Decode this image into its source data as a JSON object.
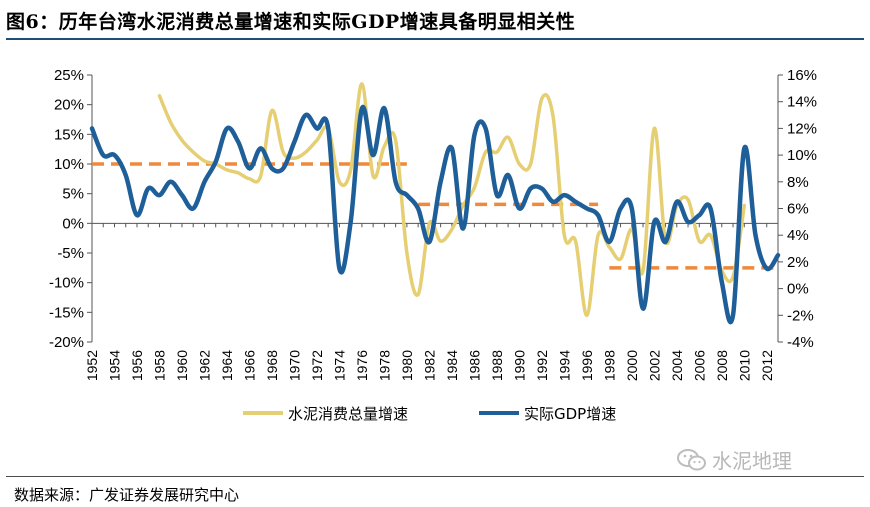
{
  "header": {
    "title": "图6：历年台湾水泥消费总量增速和实际GDP增速具备明显相关性"
  },
  "footer": {
    "source": "数据来源：广发证券发展研究中心",
    "watermark": "水泥地理",
    "watermark_icon": "wechat-icon"
  },
  "colors": {
    "cement": "#e6cf72",
    "gdp": "#1f5f99",
    "average": "#ef8a3c",
    "rule": "#1f4e79"
  },
  "chart_data": {
    "type": "line",
    "x_tick_labels": [
      "1952",
      "1954",
      "1956",
      "1958",
      "1960",
      "1962",
      "1964",
      "1966",
      "1968",
      "1970",
      "1972",
      "1974",
      "1976",
      "1978",
      "1980",
      "1982",
      "1984",
      "1986",
      "1988",
      "1990",
      "1992",
      "1994",
      "1996",
      "1998",
      "2000",
      "2002",
      "2004",
      "2006",
      "2008",
      "2010",
      "2012"
    ],
    "y_left": {
      "ticks": [
        "25%",
        "20%",
        "15%",
        "10%",
        "5%",
        "0%",
        "-5%",
        "-10%",
        "-15%",
        "-20%"
      ],
      "range": [
        -20,
        25
      ]
    },
    "y_right": {
      "ticks": [
        "16%",
        "14%",
        "12%",
        "10%",
        "8%",
        "6%",
        "4%",
        "2%",
        "0%",
        "-2%",
        "-4%"
      ],
      "range": [
        -4,
        16
      ]
    },
    "series": [
      {
        "name": "水泥消费总量增速",
        "axis": "left",
        "x": [
          1958,
          1959,
          1960,
          1961,
          1962,
          1963,
          1964,
          1965,
          1966,
          1967,
          1968,
          1969,
          1970,
          1971,
          1972,
          1973,
          1974,
          1975,
          1976,
          1977,
          1978,
          1979,
          1980,
          1981,
          1982,
          1983,
          1984,
          1985,
          1986,
          1987,
          1988,
          1989,
          1990,
          1991,
          1992,
          1993,
          1994,
          1995,
          1996,
          1997,
          1998,
          1999,
          2000,
          2001,
          2002,
          2003,
          2004,
          2005,
          2006,
          2007,
          2008,
          2009,
          2010
        ],
        "values": [
          21.5,
          17,
          14,
          12,
          10.5,
          10,
          9,
          8.5,
          7.5,
          8,
          19,
          12,
          11,
          12,
          14,
          16,
          7,
          9,
          23.5,
          8,
          13,
          14,
          -5,
          -12,
          0,
          -3,
          -1,
          3,
          6,
          12,
          12,
          14.5,
          10,
          10,
          21,
          18,
          -2,
          -3,
          -15.5,
          -2,
          -4,
          -6,
          -1,
          -8,
          16,
          -3,
          3,
          4,
          -3,
          -2,
          -8,
          -9,
          3
        ]
      },
      {
        "name": "实际GDP增速",
        "axis": "right",
        "x": [
          1952,
          1953,
          1954,
          1955,
          1956,
          1957,
          1958,
          1959,
          1960,
          1961,
          1962,
          1963,
          1964,
          1965,
          1966,
          1967,
          1968,
          1969,
          1970,
          1971,
          1972,
          1973,
          1974,
          1975,
          1976,
          1977,
          1978,
          1979,
          1980,
          1981,
          1982,
          1983,
          1984,
          1985,
          1986,
          1987,
          1988,
          1989,
          1990,
          1991,
          1992,
          1993,
          1994,
          1995,
          1996,
          1997,
          1998,
          1999,
          2000,
          2001,
          2002,
          2003,
          2004,
          2005,
          2006,
          2007,
          2008,
          2009,
          2010,
          2011,
          2012,
          2013
        ],
        "values": [
          12,
          10,
          10,
          8.5,
          5.5,
          7.5,
          7,
          8,
          7,
          6,
          8,
          9.5,
          12,
          11,
          9,
          10.5,
          9,
          9,
          11,
          13,
          12,
          12,
          1.5,
          5,
          13.5,
          10,
          13.5,
          8,
          7,
          6,
          3.5,
          8,
          10.5,
          4.5,
          11.5,
          12,
          7,
          8.5,
          6,
          7.5,
          7.5,
          6.5,
          7,
          6.5,
          6,
          5.5,
          3.5,
          6,
          6,
          -1.5,
          5,
          3.5,
          6.5,
          5,
          5.5,
          6,
          0.5,
          -2,
          10.5,
          4,
          1.5,
          2.5
        ]
      }
    ],
    "averages": [
      {
        "series": "水泥消费总量增速",
        "axis": "left",
        "x": [
          1952,
          1980
        ],
        "value": 10
      },
      {
        "series": "水泥消费总量增速",
        "axis": "left",
        "x": [
          1981,
          1997
        ],
        "value": 3.2
      },
      {
        "series": "水泥消费总量增速",
        "axis": "left",
        "x": [
          1998,
          2013
        ],
        "value": -7.5
      }
    ],
    "legend_position": "bottom",
    "grid": false
  }
}
